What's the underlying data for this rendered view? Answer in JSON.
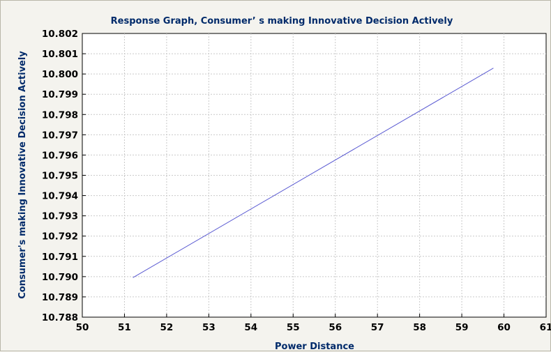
{
  "chart_data": {
    "type": "line",
    "title": "Response Graph, Consumer’ s making Innovative Decision Actively",
    "xlabel": "Power Distance",
    "ylabel": "Consumer's making Innovative Decision Actively",
    "xlim": [
      50,
      61
    ],
    "ylim": [
      10.788,
      10.802
    ],
    "x_ticks": [
      "50",
      "51",
      "52",
      "53",
      "54",
      "55",
      "56",
      "57",
      "58",
      "59",
      "60",
      "61"
    ],
    "y_ticks": [
      "10.788",
      "10.789",
      "10.790",
      "10.791",
      "10.792",
      "10.793",
      "10.794",
      "10.795",
      "10.796",
      "10.797",
      "10.798",
      "10.799",
      "10.800",
      "10.801",
      "10.802"
    ],
    "grid": true,
    "series": [
      {
        "color": "#5a5ad2",
        "x": [
          51.2,
          59.75
        ],
        "y": [
          10.78995,
          10.80029
        ]
      }
    ]
  }
}
